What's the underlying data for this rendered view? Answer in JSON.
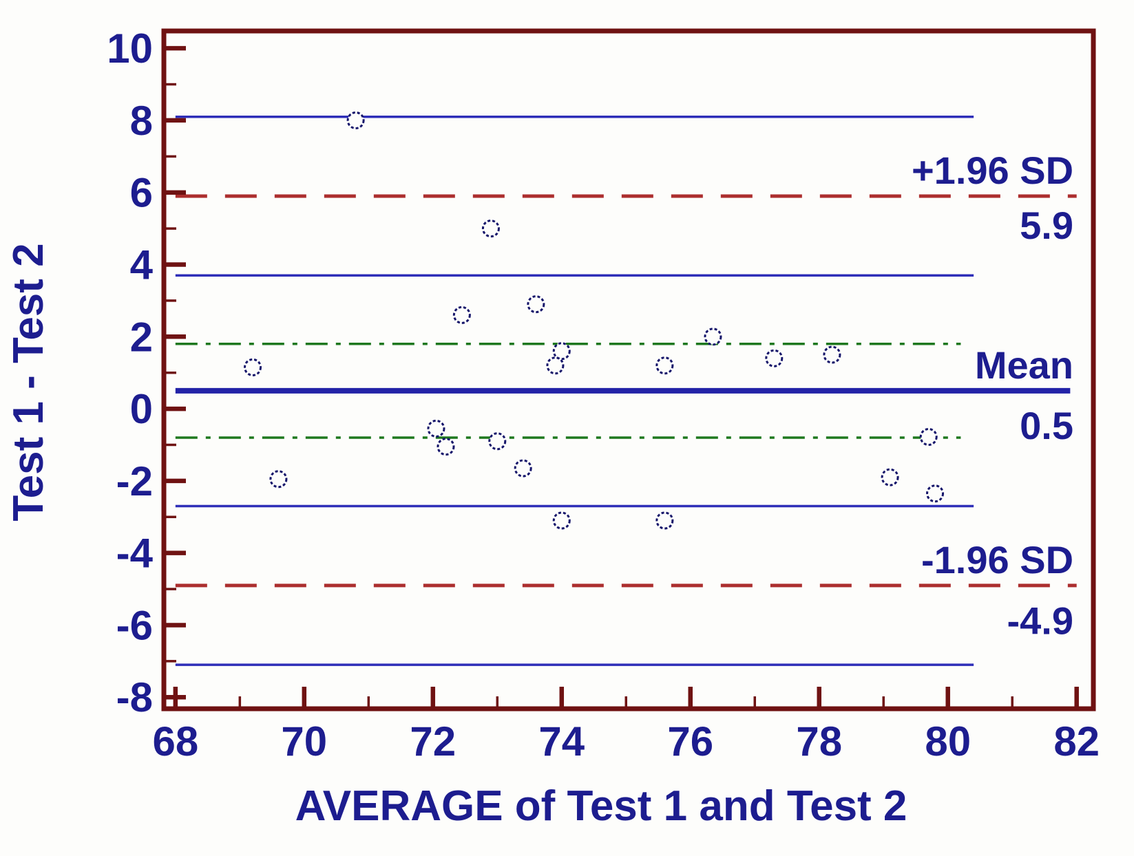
{
  "chart_data": {
    "type": "scatter",
    "title": "",
    "xlabel": "AVERAGE of Test 1 and Test 2",
    "ylabel": "Test 1 - Test 2",
    "xlim": [
      67.82,
      82.26
    ],
    "ylim": [
      -8.32,
      10.48
    ],
    "x_major_ticks": [
      68,
      70,
      72,
      74,
      76,
      78,
      80,
      82
    ],
    "x_minor_ticks": [
      69,
      71,
      73,
      75,
      77,
      79,
      81
    ],
    "y_major_ticks": [
      -8,
      -6,
      -4,
      -2,
      0,
      2,
      4,
      6,
      8,
      10
    ],
    "y_minor_ticks": [
      -7,
      -5,
      -3,
      -1,
      1,
      3,
      5,
      7,
      9
    ],
    "grid": false,
    "legend": "none",
    "marker": {
      "shape": "open-circle",
      "radius_px": 11.5
    },
    "points": [
      [
        70.8,
        8.0
      ],
      [
        72.9,
        5.0
      ],
      [
        72.45,
        2.6
      ],
      [
        73.6,
        2.9
      ],
      [
        74.0,
        1.6
      ],
      [
        73.9,
        1.2
      ],
      [
        69.2,
        1.15
      ],
      [
        75.6,
        1.2
      ],
      [
        76.35,
        2.0
      ],
      [
        77.3,
        1.4
      ],
      [
        78.2,
        1.5
      ],
      [
        72.05,
        -0.55
      ],
      [
        72.2,
        -1.05
      ],
      [
        73.0,
        -0.9
      ],
      [
        73.4,
        -1.65
      ],
      [
        69.6,
        -1.95
      ],
      [
        79.7,
        -0.78
      ],
      [
        79.1,
        -1.9
      ],
      [
        79.8,
        -2.35
      ],
      [
        74.0,
        -3.1
      ],
      [
        75.6,
        -3.1
      ]
    ],
    "reference_lines": [
      {
        "role": "upper-loa-ci-high",
        "y": 8.1,
        "style": "solid",
        "width": "thin",
        "color_key": "blue_line",
        "x_start": 68.0,
        "x_end": 80.4
      },
      {
        "role": "upper-loa",
        "y": 5.9,
        "style": "dashed",
        "width": "medium",
        "color_key": "red_line",
        "x_start": 68.0,
        "x_end": 82.0
      },
      {
        "role": "upper-loa-ci-low",
        "y": 3.7,
        "style": "solid",
        "width": "thin",
        "color_key": "blue_line",
        "x_start": 68.0,
        "x_end": 80.4
      },
      {
        "role": "mean-ci-high",
        "y": 1.8,
        "style": "dashdot",
        "width": "thin",
        "color_key": "green_line",
        "x_start": 68.0,
        "x_end": 80.2
      },
      {
        "role": "mean",
        "y": 0.5,
        "style": "solid",
        "width": "thick",
        "color_key": "mean_line",
        "x_start": 68.0,
        "x_end": 81.9
      },
      {
        "role": "mean-ci-low",
        "y": -0.8,
        "style": "dashdot",
        "width": "thin",
        "color_key": "green_line",
        "x_start": 68.0,
        "x_end": 80.2
      },
      {
        "role": "lower-loa-ci-high",
        "y": -2.7,
        "style": "solid",
        "width": "thin",
        "color_key": "blue_line",
        "x_start": 68.0,
        "x_end": 80.4
      },
      {
        "role": "lower-loa",
        "y": -4.9,
        "style": "dashed",
        "width": "medium",
        "color_key": "red_line",
        "x_start": 68.0,
        "x_end": 82.0
      },
      {
        "role": "lower-loa-ci-low",
        "y": -7.1,
        "style": "solid",
        "width": "thin",
        "color_key": "blue_line",
        "x_start": 68.0,
        "x_end": 80.4
      }
    ],
    "annotations": [
      {
        "text": "+1.96 SD",
        "y": 6.24
      },
      {
        "text": "5.9",
        "y": 4.72
      },
      {
        "text": "Mean",
        "y": 0.84
      },
      {
        "text": "0.5",
        "y": -0.84
      },
      {
        "text": "-1.96 SD",
        "y": -4.56
      },
      {
        "text": "-4.9",
        "y": -6.25
      }
    ],
    "annotation_align_x": 81.95,
    "stats": {
      "mean_diff": 0.5,
      "upper_loa": 5.9,
      "lower_loa": -4.9
    },
    "colors": {
      "background": "#fdfdfb",
      "frame": "#6f1212",
      "tick": "#6f1212",
      "text": "#1d1d8f",
      "blue_line": "#2e2eb8",
      "mean_line": "#2323a8",
      "red_line": "#ac2e2e",
      "green_line": "#1e781e",
      "marker": "#15156a"
    }
  }
}
